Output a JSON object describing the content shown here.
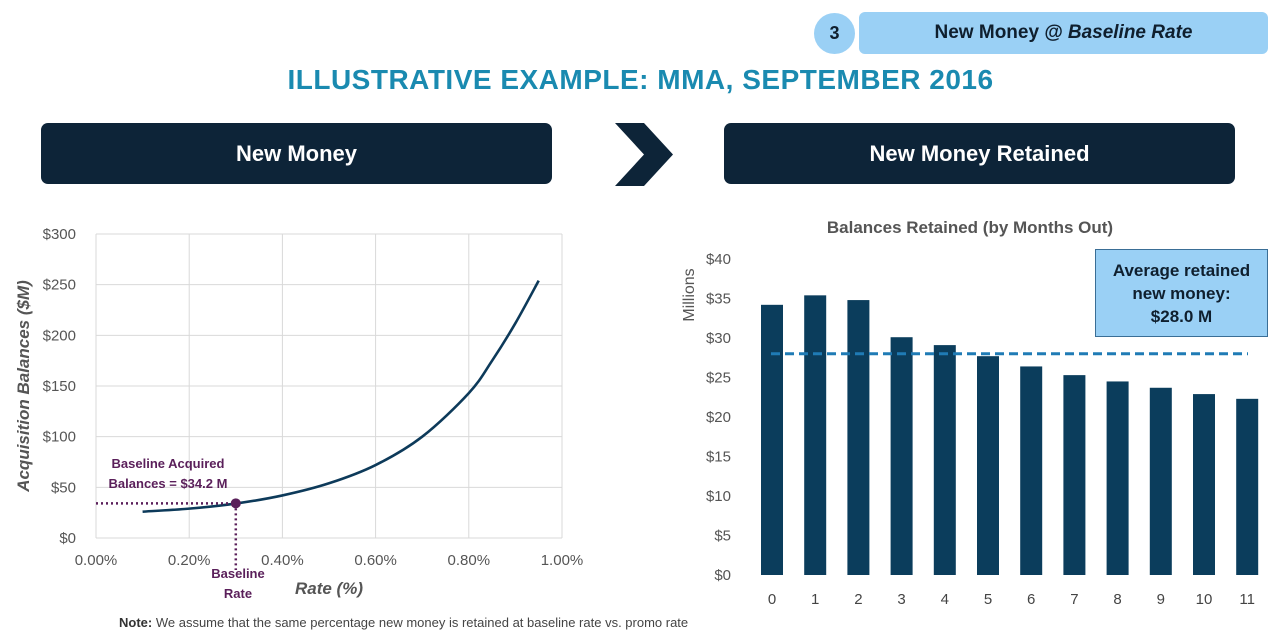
{
  "step": {
    "number": "3",
    "label": "New Money @ ",
    "label_emph": "Baseline Rate"
  },
  "page_title": "ILLUSTRATIVE EXAMPLE: MMA, SEPTEMBER 2016",
  "panels": {
    "left_title": "New Money",
    "right_title": "New Money Retained"
  },
  "colors": {
    "accent": "#1a8ab0",
    "header_bg": "#0d2438",
    "highlight": "#9ad0f5",
    "curve": "#0d3a5a",
    "bar": "#0b3d5c",
    "annotation": "#5a1f5a",
    "avg_line": "#1f7bb5"
  },
  "annotations": {
    "baseline_line1": "Baseline Acquired",
    "baseline_line2": "Balances = $34.2 M",
    "baseline_rate_line1": "Baseline",
    "baseline_rate_line2": "Rate"
  },
  "avg_box": {
    "line1": "Average retained",
    "line2": "new money:",
    "line3": "$28.0 M"
  },
  "note": {
    "label": "Note:",
    "text": " We assume that the same percentage new money is retained at baseline rate vs. promo rate"
  },
  "chart_data": [
    {
      "type": "line",
      "title": "",
      "xlabel": "Rate (%)",
      "ylabel": "Acquisition Balances ($M)",
      "xlim": [
        0,
        1.0
      ],
      "ylim": [
        0,
        300
      ],
      "xticks": [
        "0.00%",
        "0.20%",
        "0.40%",
        "0.60%",
        "0.80%",
        "1.00%"
      ],
      "yticks": [
        "$0",
        "$50",
        "$100",
        "$150",
        "$200",
        "$250",
        "$300"
      ],
      "grid": true,
      "series": [
        {
          "x": [
            0.1,
            0.2,
            0.3,
            0.4,
            0.5,
            0.6,
            0.7,
            0.8,
            0.85,
            0.9,
            0.95
          ],
          "y": [
            26,
            29,
            34,
            42,
            54,
            72,
            100,
            143,
            175,
            212,
            254
          ]
        }
      ],
      "marker": {
        "x": 0.3,
        "y": 34.2
      }
    },
    {
      "type": "bar",
      "title": "Balances Retained (by Months Out)",
      "xlabel": "",
      "ylabel": "Millions",
      "categories": [
        "0",
        "1",
        "2",
        "3",
        "4",
        "5",
        "6",
        "7",
        "8",
        "9",
        "10",
        "11"
      ],
      "values": [
        34.2,
        35.4,
        34.8,
        30.1,
        29.1,
        27.7,
        26.4,
        25.3,
        24.5,
        23.7,
        22.9,
        22.3
      ],
      "ylim": [
        0,
        40
      ],
      "yticks": [
        "$0",
        "$5",
        "$10",
        "$15",
        "$20",
        "$25",
        "$30",
        "$35",
        "$40"
      ],
      "average": 28.0,
      "grid": false
    }
  ]
}
